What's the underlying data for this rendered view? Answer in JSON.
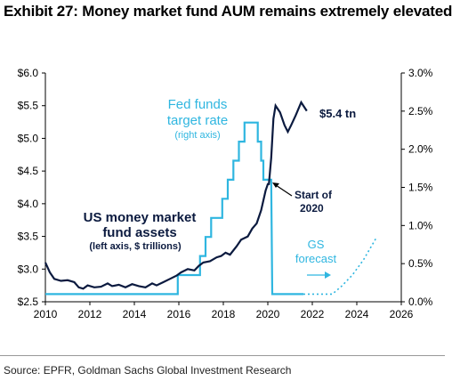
{
  "title": "Exhibit 27: Money market fund AUM remains extremely elevated",
  "source": "Source: EPFR, Goldman Sachs Global Investment Research",
  "colors": {
    "mmf": "#0b1a3f",
    "fed": "#2fb6e0",
    "forecast": "#2fb6e0"
  },
  "chart_data": {
    "type": "line",
    "x_ticks": [
      "2010",
      "2012",
      "2014",
      "2016",
      "2018",
      "2020",
      "2022",
      "2024",
      "2026"
    ],
    "xlim": [
      2010,
      2026
    ],
    "y_left": {
      "ylim": [
        2.5,
        6.0
      ],
      "ticks": [
        "$2.5",
        "$3.0",
        "$3.5",
        "$4.0",
        "$4.5",
        "$5.0",
        "$5.5",
        "$6.0"
      ]
    },
    "y_right": {
      "ylim": [
        0.0,
        3.0
      ],
      "ticks": [
        "0.0%",
        "0.5%",
        "1.0%",
        "1.5%",
        "2.0%",
        "2.5%",
        "3.0%"
      ]
    },
    "series": [
      {
        "id": "mmf",
        "axis": "left",
        "points": [
          [
            2010.0,
            3.1
          ],
          [
            2010.2,
            2.95
          ],
          [
            2010.4,
            2.85
          ],
          [
            2010.7,
            2.82
          ],
          [
            2011.0,
            2.83
          ],
          [
            2011.3,
            2.8
          ],
          [
            2011.5,
            2.72
          ],
          [
            2011.7,
            2.7
          ],
          [
            2011.9,
            2.75
          ],
          [
            2012.2,
            2.72
          ],
          [
            2012.5,
            2.73
          ],
          [
            2012.8,
            2.78
          ],
          [
            2013.0,
            2.74
          ],
          [
            2013.3,
            2.76
          ],
          [
            2013.6,
            2.72
          ],
          [
            2013.9,
            2.77
          ],
          [
            2014.2,
            2.74
          ],
          [
            2014.5,
            2.72
          ],
          [
            2014.8,
            2.78
          ],
          [
            2015.0,
            2.75
          ],
          [
            2015.3,
            2.8
          ],
          [
            2015.6,
            2.85
          ],
          [
            2015.9,
            2.9
          ],
          [
            2016.1,
            2.95
          ],
          [
            2016.4,
            3.0
          ],
          [
            2016.7,
            2.98
          ],
          [
            2016.9,
            3.05
          ],
          [
            2017.1,
            3.1
          ],
          [
            2017.4,
            3.12
          ],
          [
            2017.7,
            3.18
          ],
          [
            2017.9,
            3.2
          ],
          [
            2018.1,
            3.25
          ],
          [
            2018.3,
            3.22
          ],
          [
            2018.6,
            3.35
          ],
          [
            2018.8,
            3.45
          ],
          [
            2019.1,
            3.5
          ],
          [
            2019.3,
            3.62
          ],
          [
            2019.5,
            3.7
          ],
          [
            2019.7,
            3.9
          ],
          [
            2019.9,
            4.2
          ],
          [
            2020.0,
            4.3
          ],
          [
            2020.05,
            4.3
          ],
          [
            2020.15,
            4.7
          ],
          [
            2020.25,
            5.3
          ],
          [
            2020.35,
            5.5
          ],
          [
            2020.55,
            5.4
          ],
          [
            2020.75,
            5.2
          ],
          [
            2020.9,
            5.1
          ],
          [
            2021.05,
            5.2
          ],
          [
            2021.25,
            5.35
          ],
          [
            2021.5,
            5.55
          ],
          [
            2021.75,
            5.42
          ]
        ]
      },
      {
        "id": "fed",
        "axis": "right",
        "points": [
          [
            2010.0,
            0.1
          ],
          [
            2015.95,
            0.1
          ],
          [
            2015.95,
            0.35
          ],
          [
            2016.95,
            0.35
          ],
          [
            2016.95,
            0.6
          ],
          [
            2017.2,
            0.6
          ],
          [
            2017.2,
            0.85
          ],
          [
            2017.45,
            0.85
          ],
          [
            2017.45,
            1.1
          ],
          [
            2017.95,
            1.1
          ],
          [
            2017.95,
            1.35
          ],
          [
            2018.2,
            1.35
          ],
          [
            2018.2,
            1.6
          ],
          [
            2018.45,
            1.6
          ],
          [
            2018.45,
            1.85
          ],
          [
            2018.7,
            1.85
          ],
          [
            2018.7,
            2.1
          ],
          [
            2018.95,
            2.1
          ],
          [
            2018.95,
            2.35
          ],
          [
            2019.55,
            2.35
          ],
          [
            2019.55,
            2.1
          ],
          [
            2019.7,
            2.1
          ],
          [
            2019.7,
            1.85
          ],
          [
            2019.8,
            1.85
          ],
          [
            2019.8,
            1.6
          ],
          [
            2020.15,
            1.6
          ],
          [
            2020.2,
            0.1
          ],
          [
            2021.6,
            0.1
          ]
        ]
      },
      {
        "id": "forecast",
        "axis": "right",
        "dashed": true,
        "points": [
          [
            2021.6,
            0.1
          ],
          [
            2022.9,
            0.1
          ],
          [
            2023.3,
            0.2
          ],
          [
            2023.8,
            0.35
          ],
          [
            2024.3,
            0.55
          ],
          [
            2024.9,
            0.85
          ]
        ]
      }
    ],
    "annotations": {
      "fed_label": [
        "Fed funds",
        "target rate"
      ],
      "fed_sub": "(right axis)",
      "mmf_label": [
        "US money market",
        "fund assets"
      ],
      "mmf_sub": "(left axis, $ trillions)",
      "latest": "$5.4 tn",
      "start": [
        "Start of",
        "2020"
      ],
      "gs": [
        "GS",
        "forecast"
      ]
    }
  }
}
